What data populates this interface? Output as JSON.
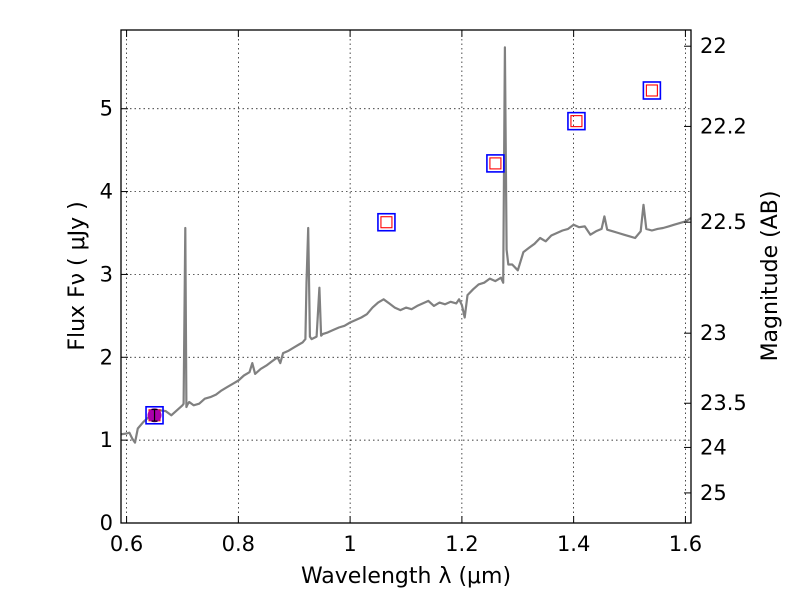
{
  "chart_data": {
    "type": "line",
    "title": "",
    "xlabel": "Wavelength  λ (μm)",
    "ylabel": "Flux  Fν  ( μJy )",
    "y2label": "Magnitude (AB)",
    "xlim": [
      0.59,
      1.61
    ],
    "ylim": [
      0,
      5.95
    ],
    "grid": true,
    "x_ticks": [
      "0.6",
      "0.8",
      "1",
      "1.2",
      "1.4",
      "1.6"
    ],
    "y_ticks": [
      "0",
      "1",
      "2",
      "3",
      "4",
      "5"
    ],
    "y2_ticks": [
      {
        "label": "22",
        "mag": 22.0
      },
      {
        "label": "22.2",
        "mag": 22.2
      },
      {
        "label": "22.5",
        "mag": 22.5
      },
      {
        "label": "23",
        "mag": 23.0
      },
      {
        "label": "23.5",
        "mag": 23.5
      },
      {
        "label": "24",
        "mag": 24.0
      },
      {
        "label": "25",
        "mag": 25.0
      }
    ],
    "series": [
      {
        "kind": "model-spectrum",
        "color": "#808080",
        "x": [
          0.59,
          0.6,
          0.605,
          0.61,
          0.615,
          0.62,
          0.63,
          0.64,
          0.65,
          0.66,
          0.67,
          0.68,
          0.69,
          0.7,
          0.702,
          0.705,
          0.707,
          0.709,
          0.712,
          0.72,
          0.73,
          0.74,
          0.75,
          0.76,
          0.77,
          0.78,
          0.79,
          0.8,
          0.81,
          0.82,
          0.825,
          0.83,
          0.84,
          0.85,
          0.86,
          0.87,
          0.875,
          0.88,
          0.89,
          0.9,
          0.91,
          0.915,
          0.92,
          0.922,
          0.925,
          0.928,
          0.931,
          0.94,
          0.945,
          0.948,
          0.951,
          0.96,
          0.97,
          0.98,
          0.99,
          1.0,
          1.01,
          1.02,
          1.03,
          1.04,
          1.05,
          1.06,
          1.07,
          1.08,
          1.09,
          1.1,
          1.11,
          1.12,
          1.13,
          1.14,
          1.15,
          1.16,
          1.17,
          1.18,
          1.19,
          1.195,
          1.2,
          1.205,
          1.21,
          1.22,
          1.23,
          1.24,
          1.25,
          1.26,
          1.27,
          1.274,
          1.277,
          1.28,
          1.283,
          1.29,
          1.3,
          1.31,
          1.32,
          1.33,
          1.34,
          1.35,
          1.36,
          1.37,
          1.38,
          1.39,
          1.4,
          1.41,
          1.42,
          1.43,
          1.44,
          1.45,
          1.455,
          1.46,
          1.47,
          1.48,
          1.49,
          1.5,
          1.51,
          1.52,
          1.525,
          1.53,
          1.54,
          1.55,
          1.56,
          1.57,
          1.58,
          1.59,
          1.6,
          1.61
        ],
        "y": [
          1.07,
          1.08,
          1.09,
          1.02,
          0.97,
          1.14,
          1.22,
          1.28,
          1.32,
          1.36,
          1.35,
          1.3,
          1.36,
          1.42,
          1.44,
          3.56,
          1.4,
          1.43,
          1.46,
          1.42,
          1.44,
          1.5,
          1.52,
          1.55,
          1.6,
          1.64,
          1.68,
          1.72,
          1.78,
          1.82,
          1.93,
          1.8,
          1.86,
          1.9,
          1.95,
          2.0,
          1.93,
          2.05,
          2.08,
          2.12,
          2.16,
          2.18,
          2.22,
          2.9,
          3.56,
          2.25,
          2.22,
          2.25,
          2.84,
          2.26,
          2.28,
          2.3,
          2.33,
          2.36,
          2.38,
          2.42,
          2.45,
          2.48,
          2.52,
          2.6,
          2.66,
          2.7,
          2.65,
          2.6,
          2.57,
          2.6,
          2.58,
          2.62,
          2.65,
          2.68,
          2.62,
          2.66,
          2.64,
          2.67,
          2.65,
          2.7,
          2.63,
          2.48,
          2.75,
          2.82,
          2.88,
          2.9,
          2.95,
          2.92,
          2.96,
          2.9,
          5.74,
          3.3,
          3.12,
          3.12,
          3.05,
          3.27,
          3.32,
          3.37,
          3.44,
          3.4,
          3.47,
          3.5,
          3.53,
          3.55,
          3.6,
          3.57,
          3.58,
          3.48,
          3.52,
          3.55,
          3.7,
          3.54,
          3.52,
          3.5,
          3.48,
          3.46,
          3.44,
          3.52,
          3.84,
          3.55,
          3.53,
          3.55,
          3.56,
          3.58,
          3.6,
          3.62,
          3.64,
          3.68
        ]
      },
      {
        "kind": "photometry-outer",
        "marker": "square-open",
        "color": "#0000ff",
        "x": [
          0.65,
          1.065,
          1.26,
          1.405,
          1.54
        ],
        "y": [
          1.3,
          3.63,
          4.34,
          4.85,
          5.22
        ]
      },
      {
        "kind": "photometry-inner",
        "marker": "square-open",
        "color": "#ff0000",
        "x": [
          0.65,
          1.065,
          1.26,
          1.405,
          1.54
        ],
        "y": [
          1.3,
          3.63,
          4.34,
          4.85,
          5.22
        ]
      },
      {
        "kind": "measured-point",
        "marker": "circle-filled",
        "color": "#aa00aa",
        "x": [
          0.65
        ],
        "y": [
          1.3
        ],
        "yerr": [
          0.07
        ]
      }
    ]
  }
}
